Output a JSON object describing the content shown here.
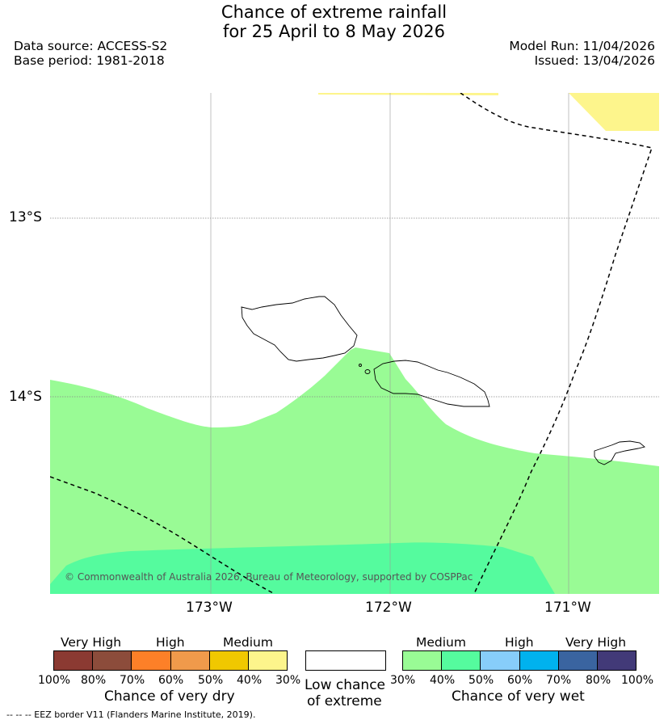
{
  "title": {
    "line1": "Chance of extreme rainfall",
    "line2": "for 25 April to 8 May 2026"
  },
  "meta": {
    "data_source": "Data source: ACCESS-S2",
    "base_period": "Base period: 1981-2018",
    "model_run": "Model Run: 11/04/2026",
    "issued": "Issued: 13/04/2026"
  },
  "map": {
    "lat_labels": [
      "13°S",
      "14°S"
    ],
    "lon_labels": [
      "173°W",
      "172°W",
      "171°W"
    ],
    "copyright": "© Commonwealth of Australia 2026, Bureau of Meteorology, supported by COSPPac",
    "colors": {
      "medium_wet": "#99fb95",
      "medium_high_wet": "#55fb9e",
      "medium_dry": "#fdf58c"
    }
  },
  "legend": {
    "dry": {
      "headings": [
        "Very High",
        "High",
        "Medium"
      ],
      "ticks": [
        "100%",
        "80%",
        "70%",
        "60%",
        "50%",
        "40%",
        "30%"
      ],
      "colors": [
        "#8b3a32",
        "#8c4c3b",
        "#fd8028",
        "#f09a4b",
        "#f0c800",
        "#fdf58c"
      ],
      "title": "Chance of very dry"
    },
    "low": {
      "line1": "Low chance",
      "line2": "of extreme"
    },
    "wet": {
      "headings": [
        "Medium",
        "High",
        "Very High"
      ],
      "ticks": [
        "30%",
        "40%",
        "50%",
        "60%",
        "70%",
        "80%",
        "100%"
      ],
      "colors": [
        "#99fb95",
        "#55fb9e",
        "#87cdfa",
        "#00b2ee",
        "#3a64a0",
        "#423a78"
      ],
      "title": "Chance of very wet"
    }
  },
  "footnote": "-- -- -- EEZ border V11 (Flanders Marine Institute, 2019)."
}
